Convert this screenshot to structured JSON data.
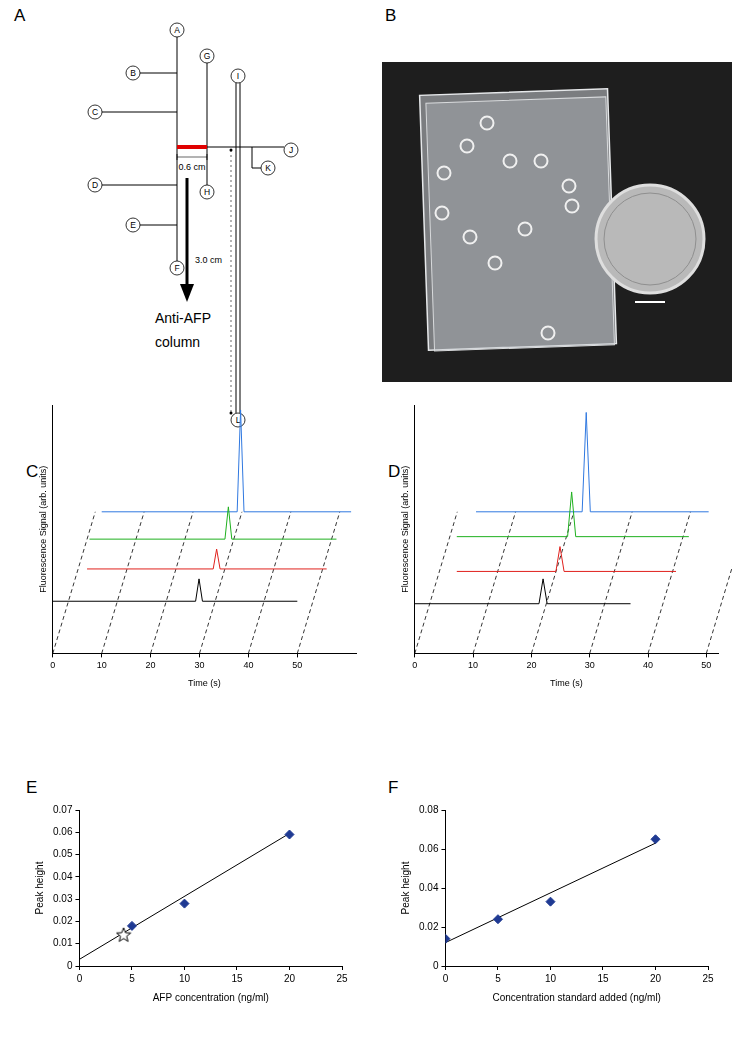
{
  "diagram": {
    "panel": "A",
    "nodes": [
      "A",
      "B",
      "C",
      "D",
      "E",
      "F",
      "G",
      "H",
      "I",
      "J",
      "K",
      "L"
    ],
    "dimensions": [
      "0.6 cm",
      "3.0 cm"
    ],
    "arrow_label": [
      "Anti-AFP",
      "column"
    ]
  },
  "photo": {
    "panel": "B"
  },
  "chart_data": [
    {
      "panel": "C",
      "type": "line",
      "x_label": "Time (s)",
      "y_label": "Fluorescence Signal (arb. units)",
      "xlim": [
        0,
        62
      ],
      "xticks": [
        0,
        10,
        20,
        30,
        40,
        50
      ],
      "ylim": [
        0,
        10
      ],
      "tick_labels": "x",
      "grid": false,
      "series": [
        {
          "color": "#000000",
          "x": [
            0,
            29.2,
            29.9,
            30.6,
            50
          ],
          "values": [
            2.1,
            2.1,
            3.0,
            2.1,
            2.1
          ]
        },
        {
          "color": "#e0201c",
          "x": [
            7,
            32.8,
            33.5,
            34.2,
            56
          ],
          "values": [
            3.4,
            3.4,
            4.2,
            3.4,
            3.4
          ]
        },
        {
          "color": "#1fb01f",
          "x": [
            7.5,
            35.2,
            35.9,
            36.6,
            58
          ],
          "values": [
            4.6,
            4.6,
            5.9,
            4.6,
            4.6
          ]
        },
        {
          "color": "#2f78e0",
          "x": [
            10,
            37.7,
            38.4,
            39.1,
            61
          ],
          "values": [
            5.7,
            5.7,
            9.8,
            5.7,
            5.7
          ]
        }
      ]
    },
    {
      "panel": "D",
      "type": "line",
      "x_label": "Time (s)",
      "y_label": "Fluorescence Signal (arb. units)",
      "xlim": [
        0,
        52
      ],
      "xticks": [
        0,
        10,
        20,
        30,
        40,
        50
      ],
      "ylim": [
        0,
        10
      ],
      "tick_labels": "x",
      "grid": false,
      "series": [
        {
          "color": "#000000",
          "x": [
            0,
            21.3,
            22,
            22.7,
            37
          ],
          "values": [
            2.0,
            2.0,
            3.0,
            2.0,
            2.0
          ]
        },
        {
          "color": "#e0201c",
          "x": [
            7.2,
            24.2,
            24.9,
            25.6,
            44.8
          ],
          "values": [
            3.3,
            3.3,
            4.3,
            3.3,
            3.3
          ]
        },
        {
          "color": "#1fb01f",
          "x": [
            7.2,
            26.2,
            26.9,
            27.6,
            47
          ],
          "values": [
            4.7,
            4.7,
            6.5,
            4.7,
            4.7
          ]
        },
        {
          "color": "#2f78e0",
          "x": [
            10.5,
            28.7,
            29.4,
            30.1,
            50.4
          ],
          "values": [
            5.7,
            5.7,
            9.7,
            5.7,
            5.7
          ]
        }
      ]
    },
    {
      "panel": "E",
      "type": "scatter",
      "x_label": "AFP concentration (ng/ml)",
      "y_label": "Peak height",
      "xlim": [
        0,
        25
      ],
      "xticks": [
        0,
        5,
        10,
        15,
        20,
        25
      ],
      "ylim": [
        0,
        0.07
      ],
      "yticks": [
        0,
        0.01,
        0.02,
        0.03,
        0.04,
        0.05,
        0.06,
        0.07
      ],
      "grid": false,
      "series": [
        {
          "type": "scatter",
          "marker": "diamond",
          "color": "#1f3a93",
          "x": [
            5,
            10,
            20
          ],
          "values": [
            0.018,
            0.028,
            0.059
          ]
        },
        {
          "type": "scatter",
          "marker": "star",
          "color": "#000000",
          "x": [
            4.2
          ],
          "values": [
            0.014
          ]
        },
        {
          "type": "line",
          "color": "#000000",
          "x": [
            0,
            20
          ],
          "values": [
            0.003,
            0.0595
          ]
        }
      ]
    },
    {
      "panel": "F",
      "type": "scatter",
      "x_label": "Concentration standard added (ng/ml)",
      "y_label": "Peak height",
      "xlim": [
        0,
        25
      ],
      "xticks": [
        0,
        5,
        10,
        15,
        20,
        25
      ],
      "ylim": [
        0,
        0.08
      ],
      "yticks": [
        0,
        0.02,
        0.04,
        0.06,
        0.08
      ],
      "grid": false,
      "series": [
        {
          "type": "scatter",
          "marker": "diamond",
          "color": "#1f3a93",
          "x": [
            0,
            5,
            10,
            20
          ],
          "values": [
            0.014,
            0.024,
            0.033,
            0.065
          ]
        },
        {
          "type": "line",
          "color": "#000000",
          "x": [
            0,
            20
          ],
          "values": [
            0.012,
            0.063
          ]
        }
      ]
    }
  ]
}
